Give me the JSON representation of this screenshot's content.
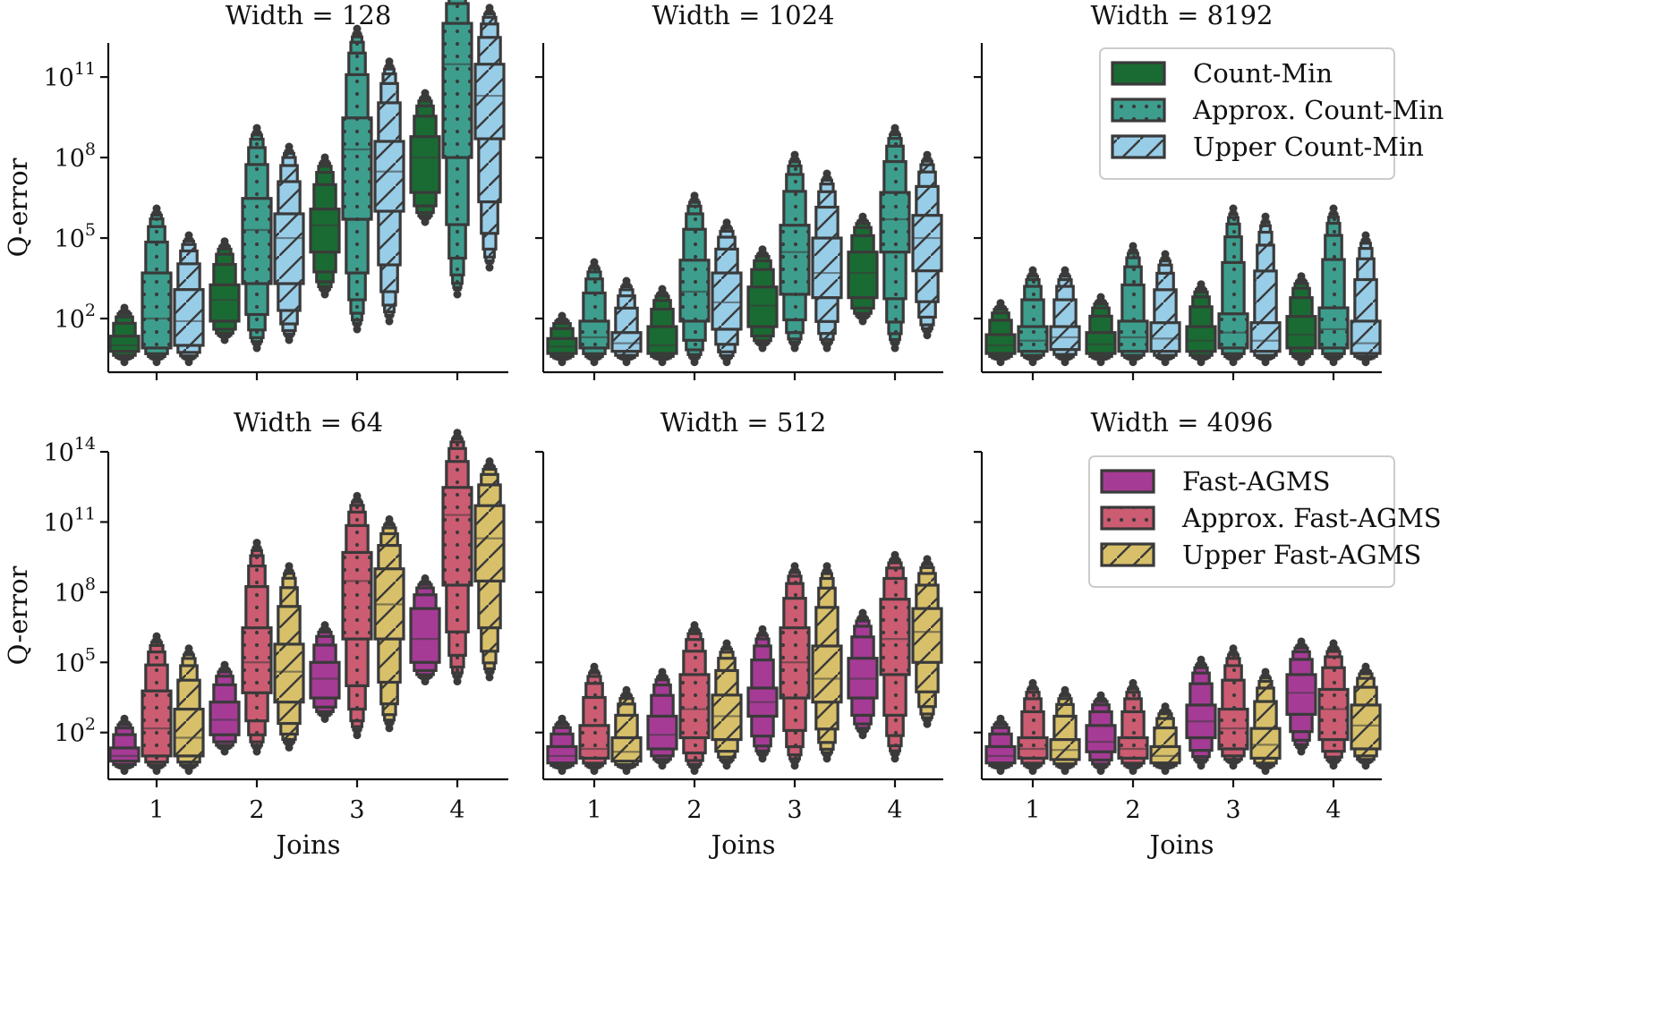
{
  "colors": {
    "count_min": "#1a6b33",
    "approx_count_min": "#3d9e8e",
    "upper_count_min": "#98cde8",
    "fast_agms": "#a63b96",
    "approx_fast_agms": "#cc5c72",
    "upper_fast_agms": "#d8c06a",
    "edge": "#3a3a3a"
  },
  "chart_data": [
    {
      "type": "boxen",
      "title": "Width = 128",
      "xlabel": "",
      "ylabel": "Q-error",
      "categories": [
        "1",
        "2",
        "3",
        "4"
      ],
      "y_scale": "log",
      "ylim": [
        1,
        1000000000000.0
      ],
      "yticks": [
        "10^2",
        "10^5",
        "10^8",
        "10^11"
      ],
      "series": [
        {
          "name": "Count-Min",
          "pattern": "solid",
          "quartiles": [
            [
              6,
              10,
              22
            ],
            [
              80,
              500,
              1800
            ],
            [
              30000,
              300000,
              1200000
            ],
            [
              5000000,
              100000000,
              600000000
            ]
          ],
          "whiskers": [
            [
              3,
              200
            ],
            [
              20,
              60000
            ],
            [
              1000,
              80000000
            ],
            [
              500000,
              20000000000
            ]
          ]
        },
        {
          "name": "Approx. Count-Min",
          "pattern": "dots",
          "quartiles": [
            [
              8,
              100,
              5000
            ],
            [
              2000,
              200000,
              3000000
            ],
            [
              500000,
              200000000,
              3000000000
            ],
            [
              100000000,
              300000000000,
              10000000000000
            ]
          ],
          "whiskers": [
            [
              3,
              1000000
            ],
            [
              10,
              1000000000
            ],
            [
              50,
              5000000000000
            ],
            [
              1000,
              300000000000000
            ]
          ]
        },
        {
          "name": "Upper Count-Min",
          "pattern": "hatch",
          "quartiles": [
            [
              10,
              80,
              1200
            ],
            [
              2000,
              100000,
              800000
            ],
            [
              1000000,
              30000000,
              400000000
            ],
            [
              500000000,
              20000000000,
              300000000000
            ]
          ],
          "whiskers": [
            [
              3,
              100000
            ],
            [
              20,
              200000000
            ],
            [
              100,
              300000000000
            ],
            [
              10000,
              30000000000000
            ]
          ]
        }
      ]
    },
    {
      "type": "boxen",
      "title": "Width = 1024",
      "xlabel": "",
      "ylabel": "",
      "categories": [
        "1",
        "2",
        "3",
        "4"
      ],
      "y_scale": "log",
      "ylim": [
        1,
        1000000000000.0
      ],
      "series": [
        {
          "name": "Count-Min",
          "pattern": "solid",
          "quartiles": [
            [
              5,
              9,
              18
            ],
            [
              5,
              10,
              50
            ],
            [
              50,
              300,
              1500
            ],
            [
              600,
              5000,
              30000
            ]
          ],
          "whiskers": [
            [
              3,
              100
            ],
            [
              3,
              1000
            ],
            [
              10,
              30000
            ],
            [
              100,
              500000
            ]
          ]
        },
        {
          "name": "Approx. Count-Min",
          "pattern": "dots",
          "quartiles": [
            [
              8,
              20,
              80
            ],
            [
              80,
              1000,
              15000
            ],
            [
              800,
              30000,
              300000
            ],
            [
              30000,
              500000,
              5000000
            ]
          ],
          "whiskers": [
            [
              3,
              10000
            ],
            [
              3,
              3000000
            ],
            [
              10,
              100000000
            ],
            [
              10,
              1000000000
            ]
          ]
        },
        {
          "name": "Upper Count-Min",
          "pattern": "hatch",
          "quartiles": [
            [
              6,
              12,
              30
            ],
            [
              40,
              400,
              5000
            ],
            [
              600,
              5000,
              100000
            ],
            [
              6000,
              100000,
              700000
            ]
          ],
          "whiskers": [
            [
              3,
              2000
            ],
            [
              3,
              300000
            ],
            [
              10,
              20000000
            ],
            [
              30,
              100000000
            ]
          ]
        }
      ]
    },
    {
      "type": "boxen",
      "title": "Width = 8192",
      "xlabel": "",
      "ylabel": "",
      "categories": [
        "1",
        "2",
        "3",
        "4"
      ],
      "y_scale": "log",
      "ylim": [
        1,
        1000000000000.0
      ],
      "series": [
        {
          "name": "Count-Min",
          "pattern": "solid",
          "quartiles": [
            [
              5,
              10,
              25
            ],
            [
              5,
              11,
              30
            ],
            [
              6,
              15,
              50
            ],
            [
              8,
              25,
              120
            ]
          ],
          "whiskers": [
            [
              3,
              300
            ],
            [
              3,
              500
            ],
            [
              3,
              1500
            ],
            [
              3,
              3000
            ]
          ]
        },
        {
          "name": "Approx. Count-Min",
          "pattern": "dots",
          "quartiles": [
            [
              6,
              15,
              50
            ],
            [
              6,
              20,
              80
            ],
            [
              8,
              30,
              150
            ],
            [
              8,
              40,
              250
            ]
          ],
          "whiskers": [
            [
              3,
              5000
            ],
            [
              3,
              40000
            ],
            [
              3,
              1000000
            ],
            [
              3,
              1000000
            ]
          ]
        },
        {
          "name": "Upper Count-Min",
          "pattern": "hatch",
          "quartiles": [
            [
              7,
              20,
              50
            ],
            [
              6,
              18,
              70
            ],
            [
              6,
              15,
              70
            ],
            [
              5,
              12,
              80
            ]
          ],
          "whiskers": [
            [
              3,
              5000
            ],
            [
              3,
              20000
            ],
            [
              3,
              500000
            ],
            [
              3,
              100000
            ]
          ]
        }
      ]
    },
    {
      "type": "boxen",
      "title": "Width = 64",
      "xlabel": "Joins",
      "ylabel": "Q-error",
      "categories": [
        "1",
        "2",
        "3",
        "4"
      ],
      "y_scale": "log",
      "ylim": [
        1,
        100000000000000.0
      ],
      "yticks": [
        "10^2",
        "10^5",
        "10^8",
        "10^11",
        "10^14"
      ],
      "series": [
        {
          "name": "Fast-AGMS",
          "pattern": "solid",
          "quartiles": [
            [
              6,
              10,
              22
            ],
            [
              80,
              350,
              2000
            ],
            [
              3000,
              20000,
              100000
            ],
            [
              100000,
              1000000,
              20000000
            ]
          ],
          "whiskers": [
            [
              3,
              300
            ],
            [
              20,
              60000
            ],
            [
              500,
              3000000
            ],
            [
              20000,
              300000000
            ]
          ]
        },
        {
          "name": "Approx. Fast-AGMS",
          "pattern": "dots",
          "quartiles": [
            [
              10,
              150,
              6000
            ],
            [
              5000,
              100000,
              3000000
            ],
            [
              1000000,
              300000000,
              5000000000
            ],
            [
              200000000,
              200000000000,
              3000000000000
            ]
          ],
          "whiskers": [
            [
              3,
              1000000
            ],
            [
              20,
              10000000000
            ],
            [
              100,
              1000000000000
            ],
            [
              20000,
              500000000000000
            ]
          ]
        },
        {
          "name": "Upper Fast-AGMS",
          "pattern": "hatch",
          "quartiles": [
            [
              10,
              60,
              1000
            ],
            [
              2000,
              40000,
              600000
            ],
            [
              1000000,
              30000000,
              1000000000
            ],
            [
              300000000,
              20000000000,
              500000000000
            ]
          ],
          "whiskers": [
            [
              3,
              300000
            ],
            [
              30,
              1000000000
            ],
            [
              200,
              100000000000
            ],
            [
              30000,
              30000000000000
            ]
          ]
        }
      ]
    },
    {
      "type": "boxen",
      "title": "Width = 512",
      "xlabel": "Joins",
      "ylabel": "",
      "categories": [
        "1",
        "2",
        "3",
        "4"
      ],
      "y_scale": "log",
      "ylim": [
        1,
        100000000000000.0
      ],
      "series": [
        {
          "name": "Fast-AGMS",
          "pattern": "solid",
          "quartiles": [
            [
              5,
              10,
              25
            ],
            [
              20,
              80,
              500
            ],
            [
              500,
              2000,
              8000
            ],
            [
              3000,
              20000,
              150000
            ]
          ],
          "whiskers": [
            [
              3,
              300
            ],
            [
              5,
              30000
            ],
            [
              10,
              2000000
            ],
            [
              100,
              10000000
            ]
          ]
        },
        {
          "name": "Approx. Fast-AGMS",
          "pattern": "dots",
          "quartiles": [
            [
              8,
              20,
              200
            ],
            [
              60,
              1000,
              30000
            ],
            [
              3000,
              100000,
              3000000
            ],
            [
              30000,
              1000000,
              50000000
            ]
          ],
          "whiskers": [
            [
              3,
              50000
            ],
            [
              3,
              3000000
            ],
            [
              5,
              1000000000
            ],
            [
              10,
              3000000000
            ]
          ]
        },
        {
          "name": "Upper Fast-AGMS",
          "pattern": "hatch",
          "quartiles": [
            [
              6,
              15,
              60
            ],
            [
              50,
              500,
              4000
            ],
            [
              2000,
              20000,
              500000
            ],
            [
              100000,
              2000000,
              20000000
            ]
          ],
          "whiskers": [
            [
              3,
              5000
            ],
            [
              5,
              500000
            ],
            [
              10,
              1000000000
            ],
            [
              300,
              2000000000
            ]
          ]
        }
      ]
    },
    {
      "type": "boxen",
      "title": "Width = 4096",
      "xlabel": "Joins",
      "ylabel": "",
      "categories": [
        "1",
        "2",
        "3",
        "4"
      ],
      "y_scale": "log",
      "ylim": [
        1,
        100000000000000.0
      ],
      "series": [
        {
          "name": "Fast-AGMS",
          "pattern": "solid",
          "quartiles": [
            [
              5,
              10,
              25
            ],
            [
              15,
              40,
              200
            ],
            [
              60,
              300,
              1500
            ],
            [
              600,
              5000,
              30000
            ]
          ],
          "whiskers": [
            [
              3,
              300
            ],
            [
              3,
              3000
            ],
            [
              5,
              100000
            ],
            [
              20,
              600000
            ]
          ]
        },
        {
          "name": "Approx. Fast-AGMS",
          "pattern": "dots",
          "quartiles": [
            [
              8,
              20,
              60
            ],
            [
              8,
              20,
              60
            ],
            [
              20,
              150,
              1000
            ],
            [
              50,
              1000,
              7000
            ]
          ],
          "whiskers": [
            [
              3,
              10000
            ],
            [
              3,
              10000
            ],
            [
              5,
              300000
            ],
            [
              5,
              500000
            ]
          ]
        },
        {
          "name": "Upper Fast-AGMS",
          "pattern": "hatch",
          "quartiles": [
            [
              7,
              18,
              50
            ],
            [
              5,
              10,
              25
            ],
            [
              8,
              30,
              150
            ],
            [
              20,
              200,
              1500
            ]
          ],
          "whiskers": [
            [
              3,
              5000
            ],
            [
              3,
              1000
            ],
            [
              3,
              30000
            ],
            [
              5,
              50000
            ]
          ]
        }
      ]
    }
  ]
}
